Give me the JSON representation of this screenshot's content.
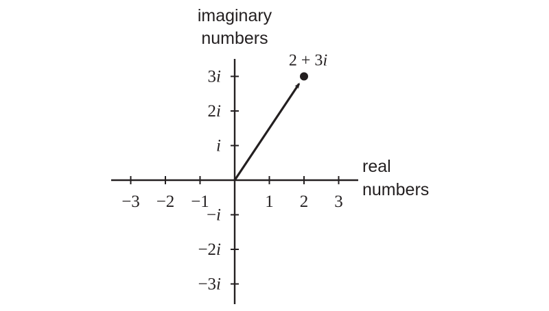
{
  "axis_labels": {
    "imaginary_line1": "imaginary",
    "imaginary_line2": "numbers",
    "real_line1": "real",
    "real_line2": "numbers"
  },
  "x_ticks": [
    {
      "value": -3,
      "label": "−3"
    },
    {
      "value": -2,
      "label": "−2"
    },
    {
      "value": -1,
      "label": "−1"
    },
    {
      "value": 1,
      "label": "1"
    },
    {
      "value": 2,
      "label": "2"
    },
    {
      "value": 3,
      "label": "3"
    }
  ],
  "y_ticks": [
    {
      "value": 3,
      "coef": "3",
      "unit": "i"
    },
    {
      "value": 2,
      "coef": "2",
      "unit": "i"
    },
    {
      "value": 1,
      "coef": "",
      "unit": "i"
    },
    {
      "value": -1,
      "coef": "−",
      "unit": "i"
    },
    {
      "value": -2,
      "coef": "−2",
      "unit": "i"
    },
    {
      "value": -3,
      "coef": "−3",
      "unit": "i"
    }
  ],
  "point": {
    "re": 2,
    "im": 3,
    "label_prefix": "2 + 3",
    "label_unit": "i"
  },
  "colors": {
    "ink": "#231f20",
    "background": "#ffffff"
  }
}
